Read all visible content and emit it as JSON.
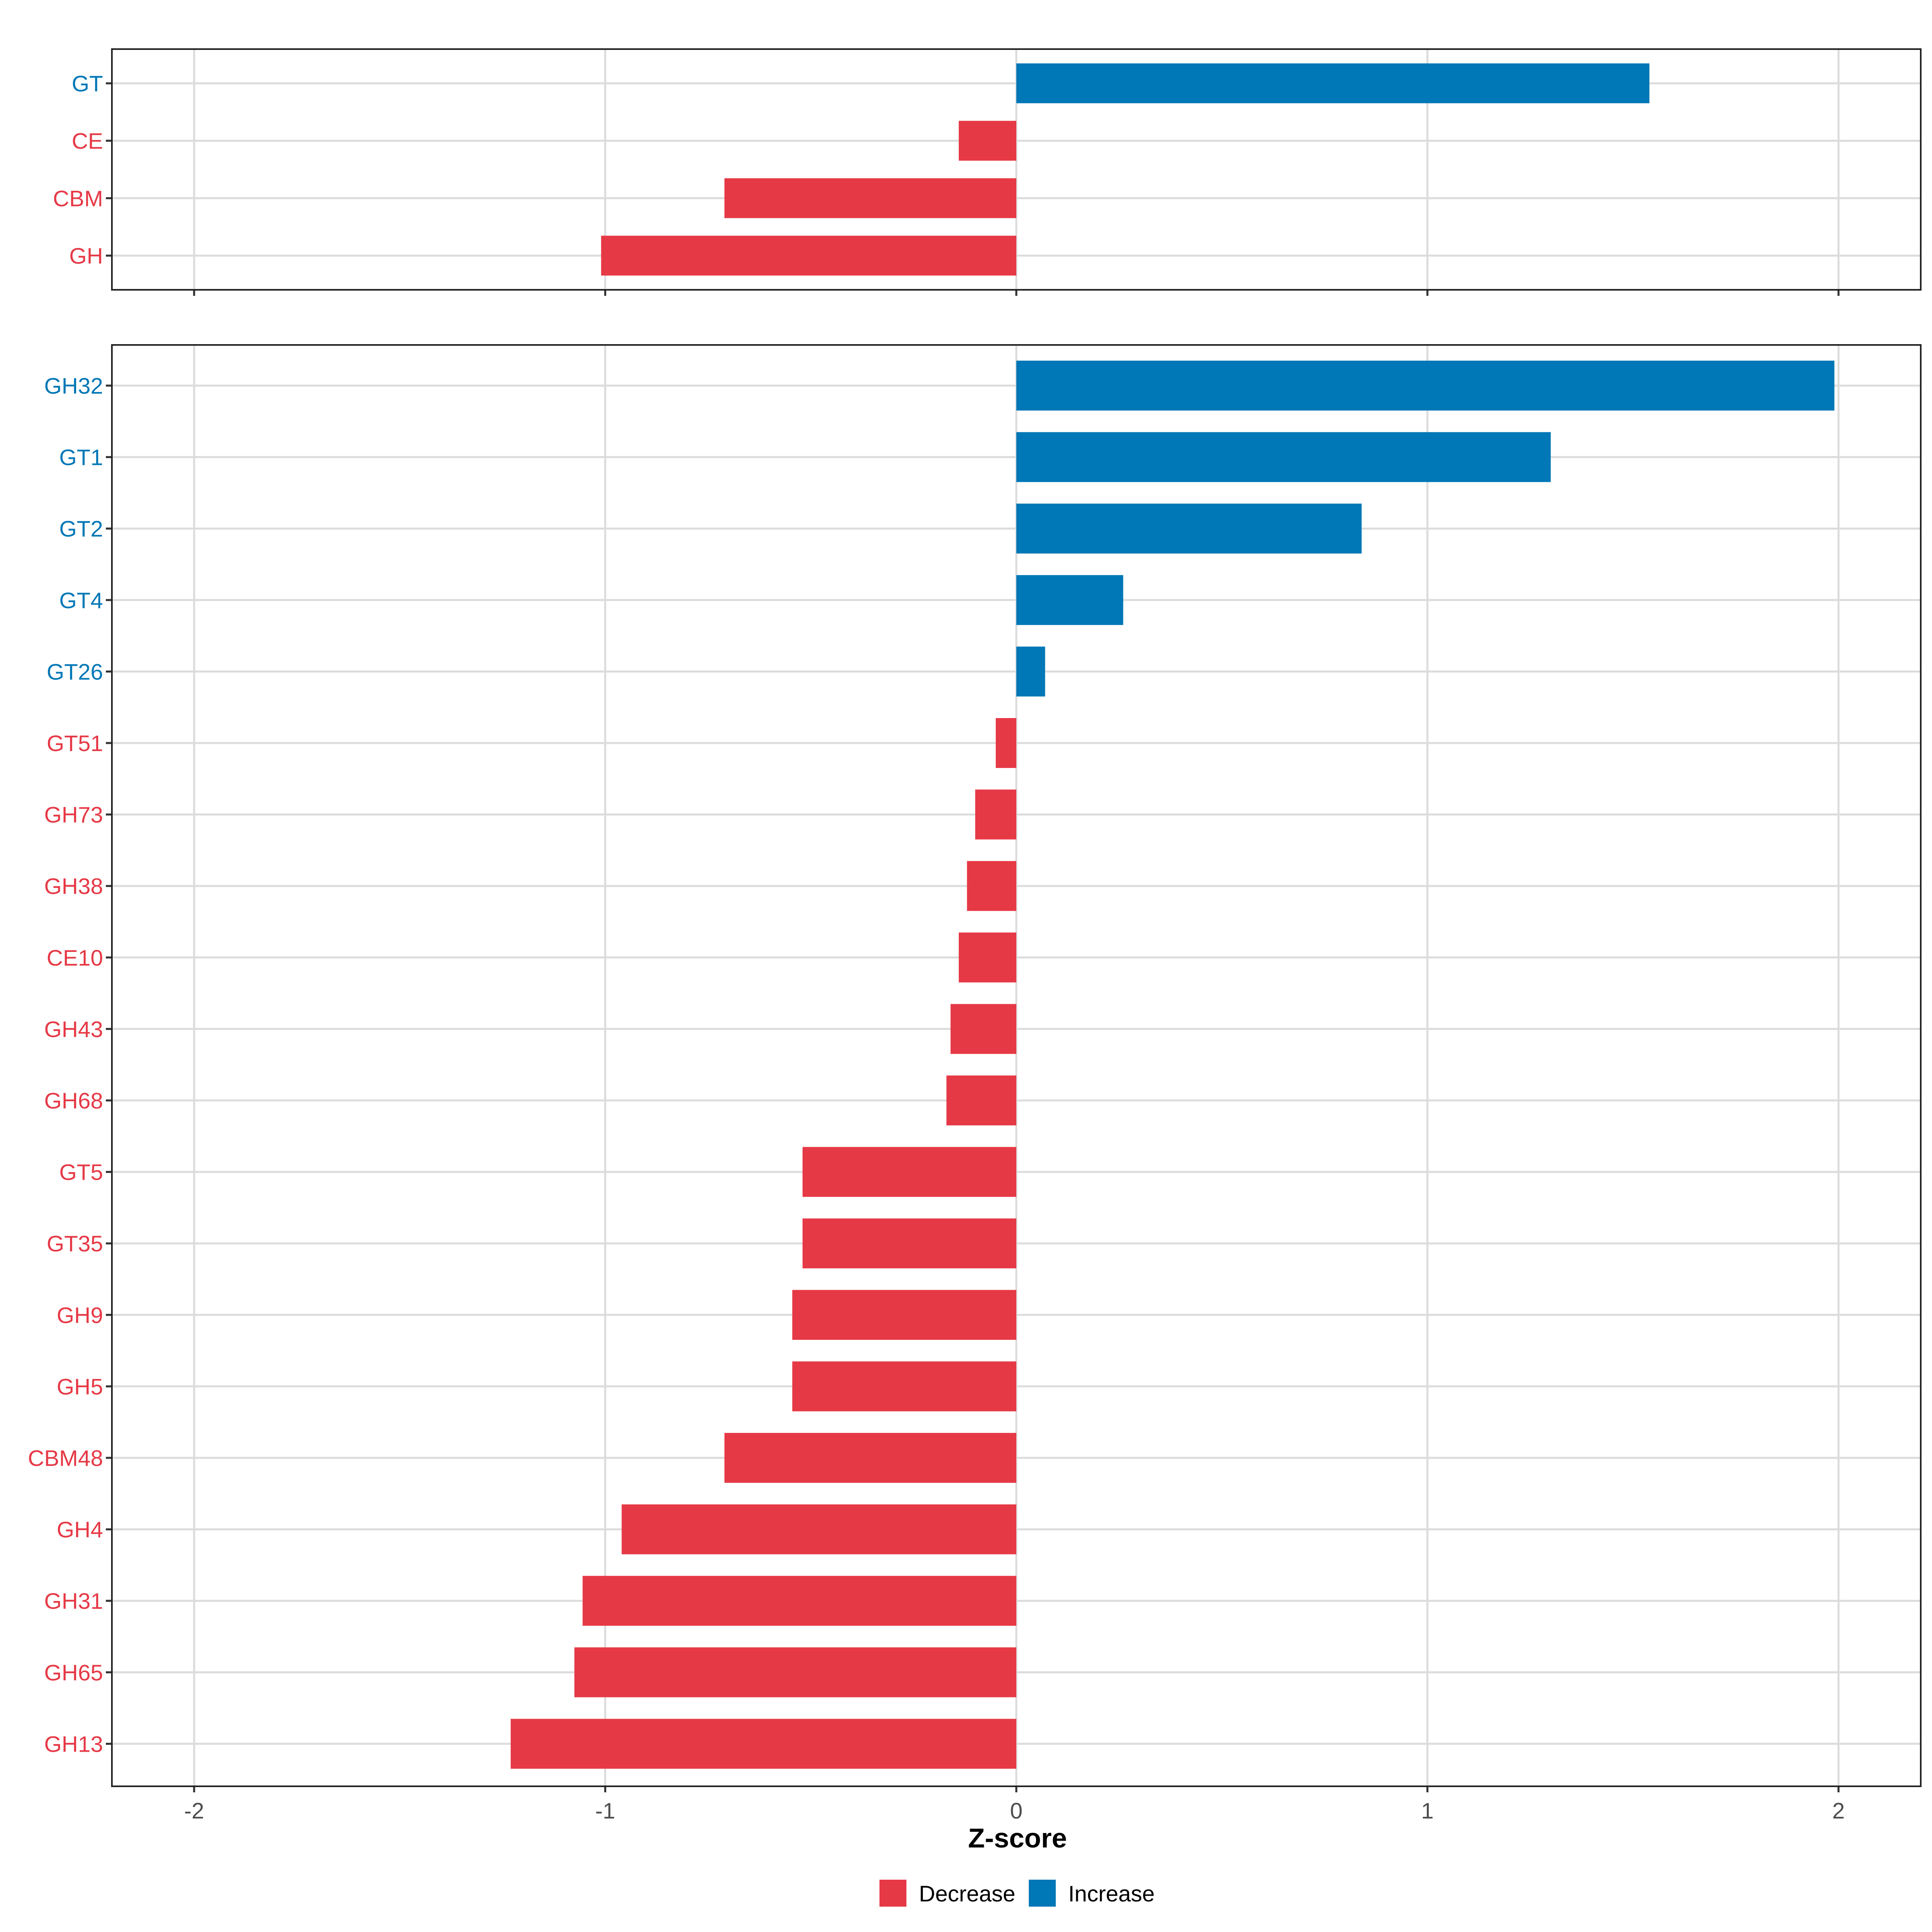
{
  "colors": {
    "decrease": "#E63946",
    "increase": "#0077B6"
  },
  "chart_data": [
    {
      "type": "bar",
      "orientation": "horizontal",
      "panel": "top",
      "categories": [
        "GT",
        "CE",
        "CBM",
        "GH"
      ],
      "values": [
        1.54,
        -0.14,
        -0.71,
        -1.01
      ],
      "xlim": [
        -2.2,
        2.2
      ],
      "xticks": [
        -2,
        -1,
        0,
        1,
        2
      ],
      "xtick_labels": [
        "-2",
        "-1",
        "0",
        "1",
        "2"
      ],
      "show_xtick_labels": false
    },
    {
      "type": "bar",
      "orientation": "horizontal",
      "panel": "bottom",
      "categories": [
        "GH32",
        "GT1",
        "GT2",
        "GT4",
        "GT26",
        "GT51",
        "GH73",
        "GH38",
        "CE10",
        "GH43",
        "GH68",
        "GT5",
        "GT35",
        "GH9",
        "GH5",
        "CBM48",
        "GH4",
        "GH31",
        "GH65",
        "GH13"
      ],
      "values": [
        1.99,
        1.3,
        0.84,
        0.26,
        0.07,
        -0.05,
        -0.1,
        -0.12,
        -0.14,
        -0.16,
        -0.17,
        -0.52,
        -0.52,
        -0.545,
        -0.545,
        -0.71,
        -0.96,
        -1.055,
        -1.075,
        -1.23
      ],
      "xlim": [
        -2.2,
        2.2
      ],
      "xticks": [
        -2,
        -1,
        0,
        1,
        2
      ],
      "xtick_labels": [
        "-2",
        "-1",
        "0",
        "1",
        "2"
      ],
      "show_xtick_labels": true,
      "xlabel": "Z-score"
    }
  ],
  "legend": {
    "items": [
      {
        "label": "Decrease",
        "color_key": "decrease"
      },
      {
        "label": "Increase",
        "color_key": "increase"
      }
    ],
    "placement": "bottom"
  }
}
